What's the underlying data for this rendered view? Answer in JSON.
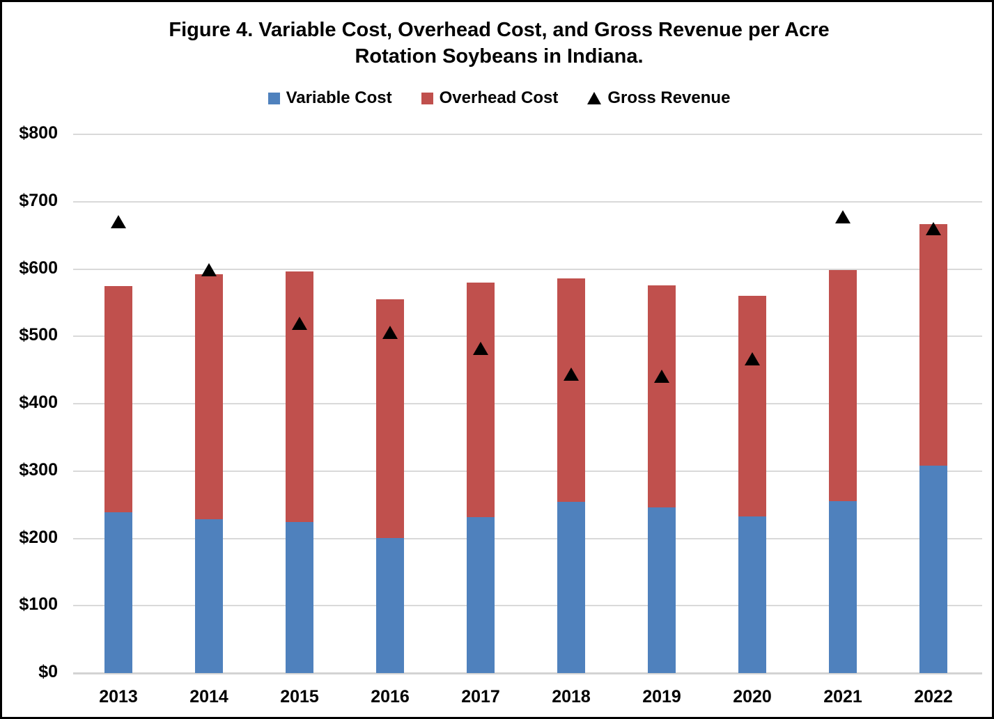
{
  "title": {
    "line1": "Figure 4. Variable Cost, Overhead Cost, and Gross Revenue per Acre",
    "line2": "Rotation Soybeans in Indiana."
  },
  "legend": [
    {
      "label": "Variable Cost",
      "marker": "square",
      "color": "#4F81BD"
    },
    {
      "label": "Overhead Cost",
      "marker": "square",
      "color": "#C0504D"
    },
    {
      "label": "Gross Revenue",
      "marker": "triangle",
      "color": "#000000"
    }
  ],
  "chart_data": {
    "type": "bar",
    "stacked": true,
    "title": "Figure 4. Variable Cost, Overhead Cost, and Gross Revenue per Acre Rotation Soybeans in Indiana.",
    "categories": [
      "2013",
      "2014",
      "2015",
      "2016",
      "2017",
      "2018",
      "2019",
      "2020",
      "2021",
      "2022"
    ],
    "series": [
      {
        "name": "Variable Cost",
        "type": "bar",
        "color": "#4F81BD",
        "values": [
          239,
          228,
          224,
          201,
          232,
          254,
          246,
          233,
          255,
          308
        ]
      },
      {
        "name": "Overhead Cost",
        "type": "bar",
        "color": "#C0504D",
        "values": [
          336,
          364,
          372,
          354,
          348,
          332,
          330,
          327,
          343,
          359
        ]
      },
      {
        "name": "Gross Revenue",
        "type": "scatter",
        "marker": "triangle",
        "color": "#000000",
        "values": [
          670,
          598,
          519,
          505,
          482,
          443,
          440,
          466,
          677,
          659
        ]
      }
    ],
    "xlabel": "",
    "ylabel": "",
    "ylim": [
      0,
      800
    ],
    "ytick_step": 100,
    "ytick_labels": [
      "$0",
      "$100",
      "$200",
      "$300",
      "$400",
      "$500",
      "$600",
      "$700",
      "$800"
    ],
    "grid": "horizontal",
    "gridline_color": "#D9D9D9",
    "legend_position": "top"
  }
}
